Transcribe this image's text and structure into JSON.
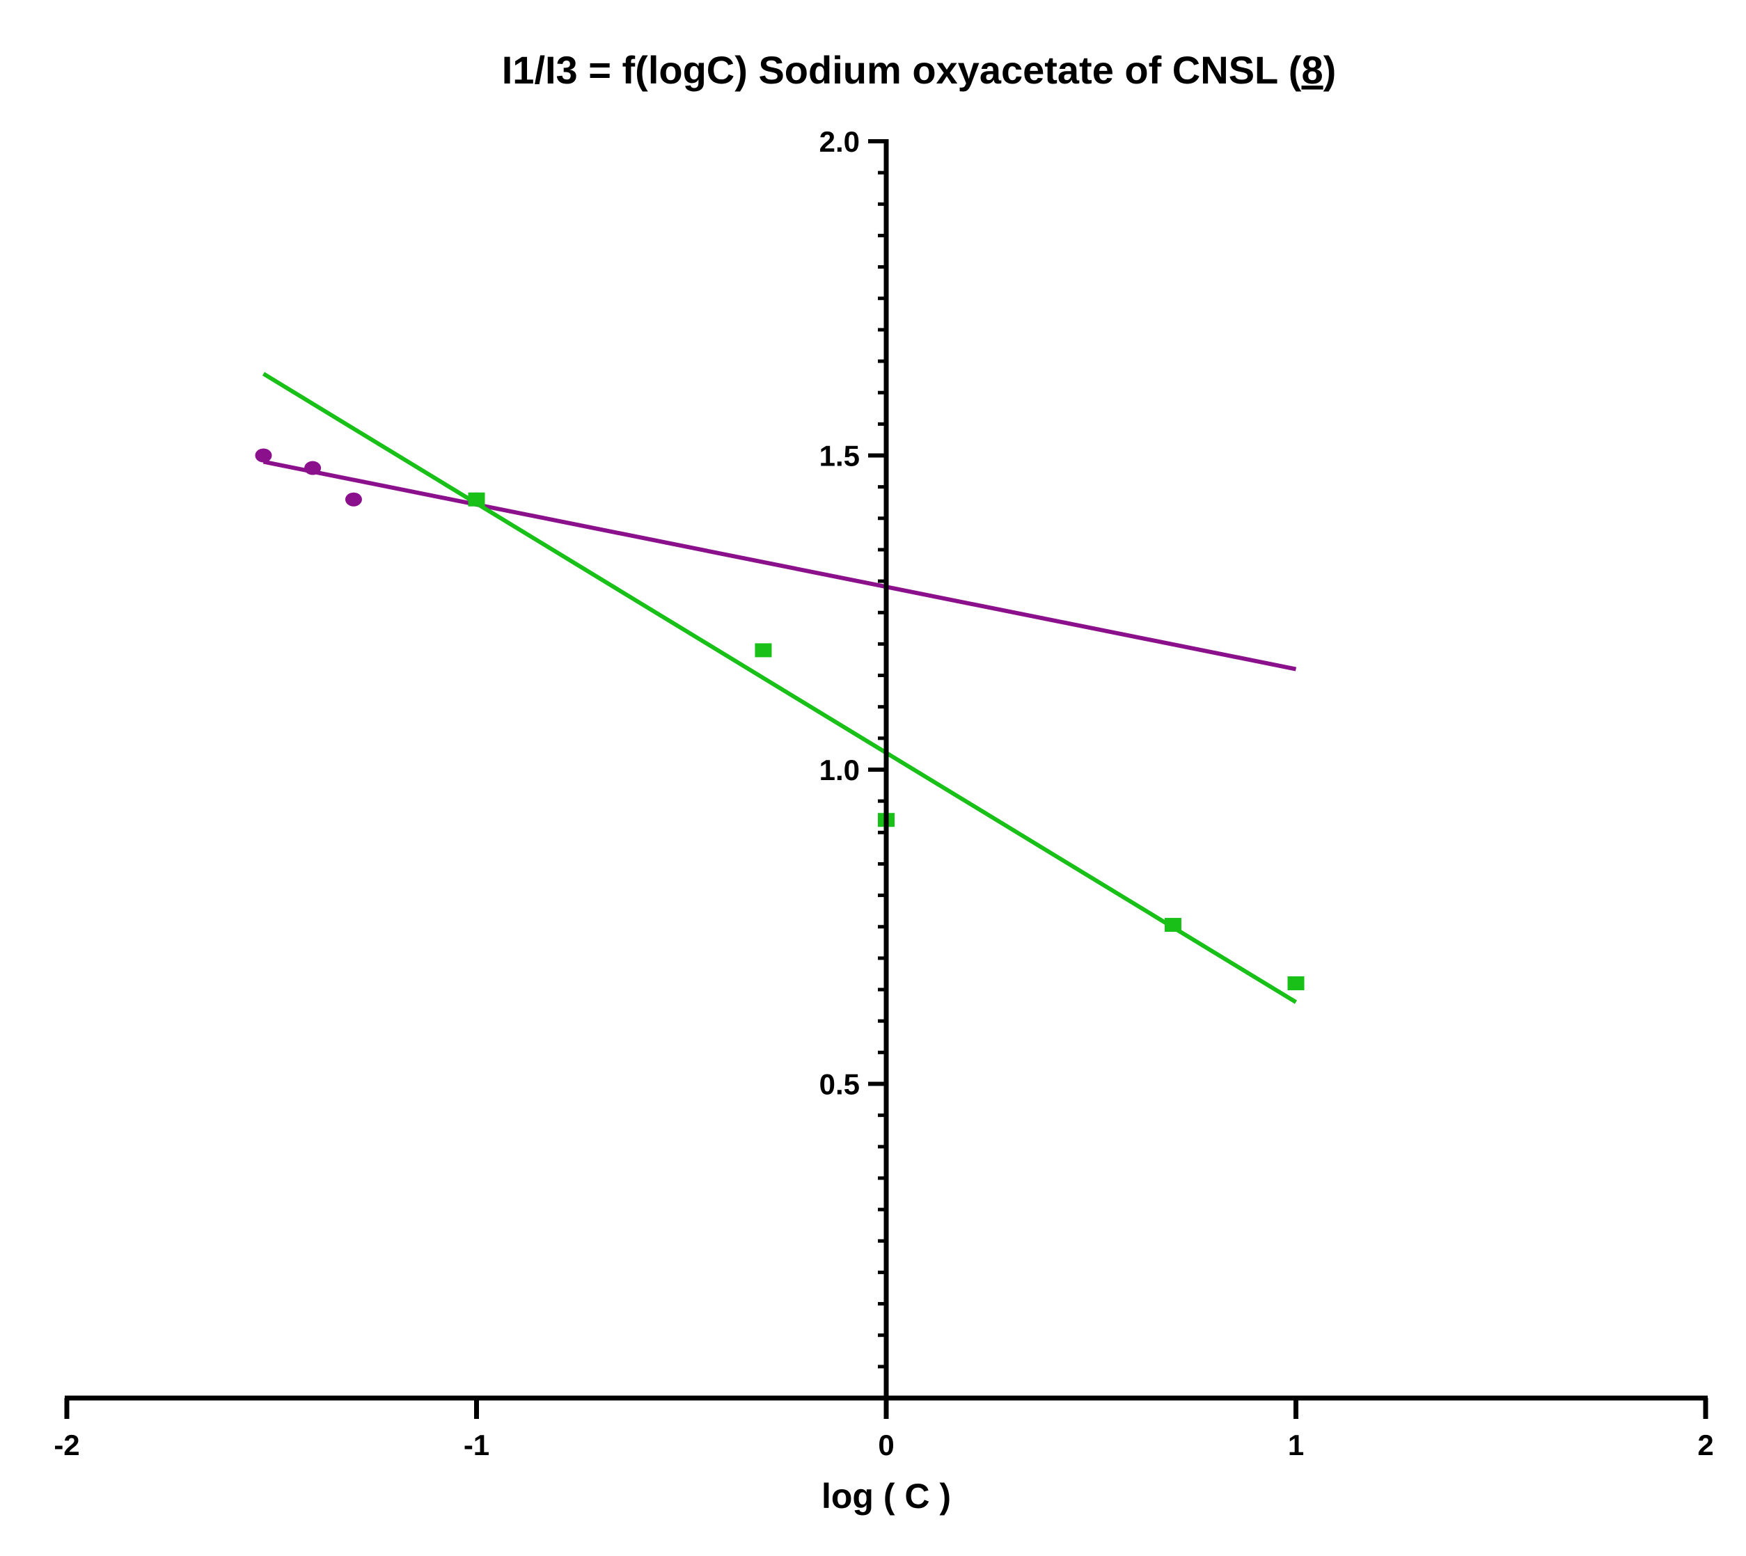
{
  "chart_data": {
    "type": "scatter",
    "title": "I1/I3 = f(logC) Sodium oxyacetate of CNSL (",
    "title_num": "8",
    "title_close": ")",
    "xlabel": "log ( C )",
    "ylabel": "",
    "xlim": [
      -2,
      2
    ],
    "ylim": [
      0,
      2.0
    ],
    "x_ticks": [
      -2,
      -1,
      0,
      1,
      2
    ],
    "x_tick_labels": [
      "-2",
      "-1",
      "0",
      "1",
      "2"
    ],
    "y_ticks": [
      0.5,
      1.0,
      1.5,
      2.0
    ],
    "y_tick_labels": [
      "0.5",
      "1.0",
      "1.5",
      "2.0"
    ],
    "series": [
      {
        "name": "purple",
        "color": "#8B108B",
        "marker": "circle",
        "points": [
          [
            -1.52,
            1.5
          ],
          [
            -1.4,
            1.48
          ],
          [
            -1.3,
            1.43
          ],
          [
            -1.0,
            1.43
          ]
        ],
        "fit_line": [
          [
            -1.52,
            1.49
          ],
          [
            1.0,
            1.16
          ]
        ]
      },
      {
        "name": "green",
        "color": "#18C018",
        "marker": "square",
        "points": [
          [
            -1.0,
            1.43
          ],
          [
            -0.3,
            1.19
          ],
          [
            0.0,
            0.92
          ],
          [
            0.7,
            0.753
          ],
          [
            1.0,
            0.66
          ]
        ],
        "fit_line": [
          [
            -1.52,
            1.63
          ],
          [
            1.0,
            0.63
          ]
        ]
      }
    ]
  }
}
